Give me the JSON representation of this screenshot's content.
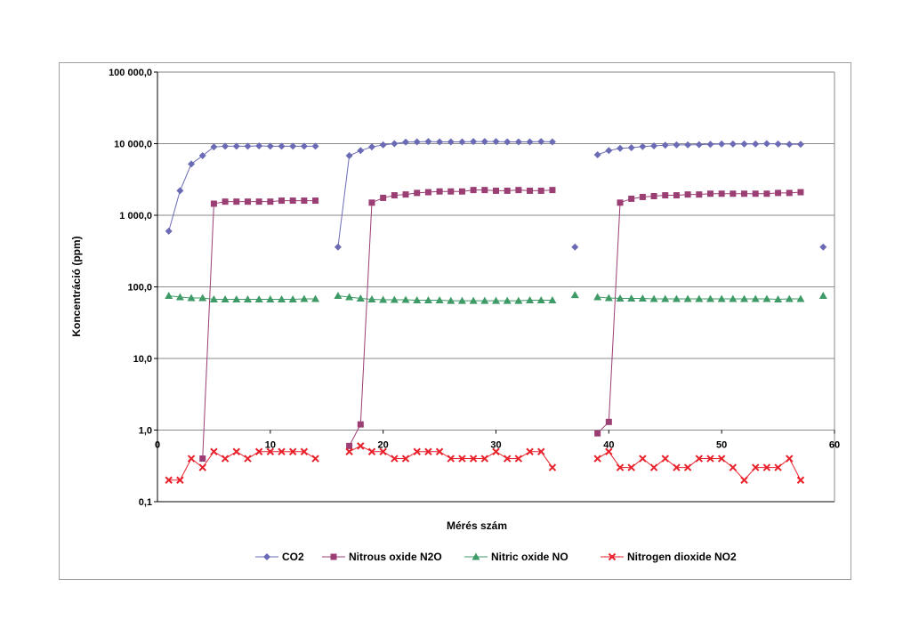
{
  "chart_data": {
    "type": "line",
    "xlabel": "Mérés szám",
    "ylabel": "Koncentráció (ppm)",
    "xlim": [
      0,
      60
    ],
    "ylim": [
      0.1,
      100000
    ],
    "y_scale": "log",
    "x_ticks": [
      "0",
      "10",
      "20",
      "30",
      "40",
      "50",
      "60"
    ],
    "x_tick_values": [
      0,
      10,
      20,
      30,
      40,
      50,
      60
    ],
    "y_ticks": [
      "0,1",
      "1,0",
      "10,0",
      "100,0",
      "1 000,0",
      "10 000,0",
      "100 000,0"
    ],
    "y_tick_values": [
      0.1,
      1,
      10,
      100,
      1000,
      10000,
      100000
    ],
    "grid": "horizontal",
    "legend_position": "bottom",
    "series": [
      {
        "name": "CO2",
        "color": "#6b6bb5",
        "marker": "diamond",
        "segments": [
          [
            [
              1,
              600
            ],
            [
              2,
              2200
            ],
            [
              3,
              5200
            ],
            [
              4,
              6800
            ],
            [
              5,
              9000
            ],
            [
              6,
              9200
            ],
            [
              7,
              9200
            ],
            [
              8,
              9200
            ],
            [
              9,
              9300
            ],
            [
              10,
              9200
            ],
            [
              11,
              9200
            ],
            [
              12,
              9200
            ],
            [
              13,
              9200
            ],
            [
              14,
              9200
            ]
          ],
          [
            [
              16,
              360
            ],
            [
              17,
              6800
            ],
            [
              18,
              8000
            ],
            [
              19,
              9000
            ],
            [
              20,
              9600
            ],
            [
              21,
              10000
            ],
            [
              22,
              10500
            ],
            [
              23,
              10600
            ],
            [
              24,
              10700
            ],
            [
              25,
              10600
            ],
            [
              26,
              10600
            ],
            [
              27,
              10600
            ],
            [
              28,
              10700
            ],
            [
              29,
              10700
            ],
            [
              30,
              10700
            ],
            [
              31,
              10600
            ],
            [
              32,
              10600
            ],
            [
              33,
              10600
            ],
            [
              34,
              10700
            ],
            [
              35,
              10600
            ]
          ],
          [
            [
              37,
              360
            ]
          ],
          [
            [
              39,
              7000
            ],
            [
              40,
              8000
            ],
            [
              41,
              8600
            ],
            [
              42,
              8800
            ],
            [
              43,
              9100
            ],
            [
              44,
              9300
            ],
            [
              45,
              9500
            ],
            [
              46,
              9600
            ],
            [
              47,
              9600
            ],
            [
              48,
              9700
            ],
            [
              49,
              9800
            ],
            [
              50,
              9900
            ],
            [
              51,
              9900
            ],
            [
              52,
              9900
            ],
            [
              53,
              9900
            ],
            [
              54,
              10000
            ],
            [
              55,
              9900
            ],
            [
              56,
              9800
            ],
            [
              57,
              9800
            ]
          ],
          [
            [
              59,
              360
            ]
          ]
        ]
      },
      {
        "name": "Nitrous oxide N2O",
        "color": "#9b3e74",
        "marker": "square",
        "segments": [
          [
            [
              4,
              0.4
            ],
            [
              5,
              1450
            ],
            [
              6,
              1550
            ],
            [
              7,
              1550
            ],
            [
              8,
              1550
            ],
            [
              9,
              1550
            ],
            [
              10,
              1550
            ],
            [
              11,
              1600
            ],
            [
              12,
              1600
            ],
            [
              13,
              1600
            ],
            [
              14,
              1600
            ]
          ],
          [
            [
              17,
              0.6
            ],
            [
              18,
              1.2
            ],
            [
              19,
              1500
            ],
            [
              20,
              1750
            ],
            [
              21,
              1900
            ],
            [
              22,
              1950
            ],
            [
              23,
              2050
            ],
            [
              24,
              2100
            ],
            [
              25,
              2150
            ],
            [
              26,
              2150
            ],
            [
              27,
              2150
            ],
            [
              28,
              2250
            ],
            [
              29,
              2250
            ],
            [
              30,
              2200
            ],
            [
              31,
              2200
            ],
            [
              32,
              2250
            ],
            [
              33,
              2200
            ],
            [
              34,
              2200
            ],
            [
              35,
              2250
            ]
          ],
          [
            [
              39,
              0.9
            ],
            [
              40,
              1.3
            ],
            [
              41,
              1500
            ],
            [
              42,
              1700
            ],
            [
              43,
              1800
            ],
            [
              44,
              1850
            ],
            [
              45,
              1900
            ],
            [
              46,
              1900
            ],
            [
              47,
              1950
            ],
            [
              48,
              1950
            ],
            [
              49,
              2000
            ],
            [
              50,
              2000
            ],
            [
              51,
              2000
            ],
            [
              52,
              2000
            ],
            [
              53,
              2000
            ],
            [
              54,
              2000
            ],
            [
              55,
              2050
            ],
            [
              56,
              2050
            ],
            [
              57,
              2100
            ]
          ]
        ]
      },
      {
        "name": "Nitric oxide NO",
        "color": "#3e9a66",
        "marker": "triangle",
        "segments": [
          [
            [
              1,
              75
            ],
            [
              2,
              72
            ],
            [
              3,
              70
            ],
            [
              4,
              70
            ],
            [
              5,
              67
            ],
            [
              6,
              67
            ],
            [
              7,
              67
            ],
            [
              8,
              67
            ],
            [
              9,
              67
            ],
            [
              10,
              67
            ],
            [
              11,
              67
            ],
            [
              12,
              67
            ],
            [
              13,
              68
            ],
            [
              14,
              68
            ]
          ],
          [
            [
              16,
              75
            ],
            [
              17,
              72
            ],
            [
              18,
              69
            ],
            [
              19,
              67
            ],
            [
              20,
              66
            ],
            [
              21,
              66
            ],
            [
              22,
              66
            ],
            [
              23,
              65
            ],
            [
              24,
              65
            ],
            [
              25,
              65
            ],
            [
              26,
              64
            ],
            [
              27,
              64
            ],
            [
              28,
              64
            ],
            [
              29,
              64
            ],
            [
              30,
              64
            ],
            [
              31,
              64
            ],
            [
              32,
              64
            ],
            [
              33,
              65
            ],
            [
              34,
              65
            ],
            [
              35,
              65
            ]
          ],
          [
            [
              37,
              77
            ]
          ],
          [
            [
              39,
              72
            ],
            [
              40,
              70
            ],
            [
              41,
              69
            ],
            [
              42,
              69
            ],
            [
              43,
              69
            ],
            [
              44,
              68
            ],
            [
              45,
              68
            ],
            [
              46,
              68
            ],
            [
              47,
              68
            ],
            [
              48,
              68
            ],
            [
              49,
              68
            ],
            [
              50,
              68
            ],
            [
              51,
              68
            ],
            [
              52,
              68
            ],
            [
              53,
              68
            ],
            [
              54,
              68
            ],
            [
              55,
              67
            ],
            [
              56,
              68
            ],
            [
              57,
              68
            ]
          ],
          [
            [
              59,
              75
            ]
          ]
        ]
      },
      {
        "name": "Nitrogen dioxide NO2",
        "color": "#e8212b",
        "marker": "x",
        "segments": [
          [
            [
              1,
              0.2
            ],
            [
              2,
              0.2
            ],
            [
              3,
              0.4
            ],
            [
              4,
              0.3
            ],
            [
              5,
              0.5
            ],
            [
              6,
              0.4
            ],
            [
              7,
              0.5
            ],
            [
              8,
              0.4
            ],
            [
              9,
              0.5
            ],
            [
              10,
              0.5
            ],
            [
              11,
              0.5
            ],
            [
              12,
              0.5
            ],
            [
              13,
              0.5
            ],
            [
              14,
              0.4
            ]
          ],
          [
            [
              17,
              0.5
            ],
            [
              18,
              0.6
            ],
            [
              19,
              0.5
            ],
            [
              20,
              0.5
            ],
            [
              21,
              0.4
            ],
            [
              22,
              0.4
            ],
            [
              23,
              0.5
            ],
            [
              24,
              0.5
            ],
            [
              25,
              0.5
            ],
            [
              26,
              0.4
            ],
            [
              27,
              0.4
            ],
            [
              28,
              0.4
            ],
            [
              29,
              0.4
            ],
            [
              30,
              0.5
            ],
            [
              31,
              0.4
            ],
            [
              32,
              0.4
            ],
            [
              33,
              0.5
            ],
            [
              34,
              0.5
            ],
            [
              35,
              0.3
            ]
          ],
          [
            [
              39,
              0.4
            ],
            [
              40,
              0.5
            ],
            [
              41,
              0.3
            ],
            [
              42,
              0.3
            ],
            [
              43,
              0.4
            ],
            [
              44,
              0.3
            ],
            [
              45,
              0.4
            ],
            [
              46,
              0.3
            ],
            [
              47,
              0.3
            ],
            [
              48,
              0.4
            ],
            [
              49,
              0.4
            ],
            [
              50,
              0.4
            ],
            [
              51,
              0.3
            ],
            [
              52,
              0.2
            ],
            [
              53,
              0.3
            ],
            [
              54,
              0.3
            ],
            [
              55,
              0.3
            ],
            [
              56,
              0.4
            ],
            [
              57,
              0.2
            ]
          ]
        ]
      }
    ]
  }
}
